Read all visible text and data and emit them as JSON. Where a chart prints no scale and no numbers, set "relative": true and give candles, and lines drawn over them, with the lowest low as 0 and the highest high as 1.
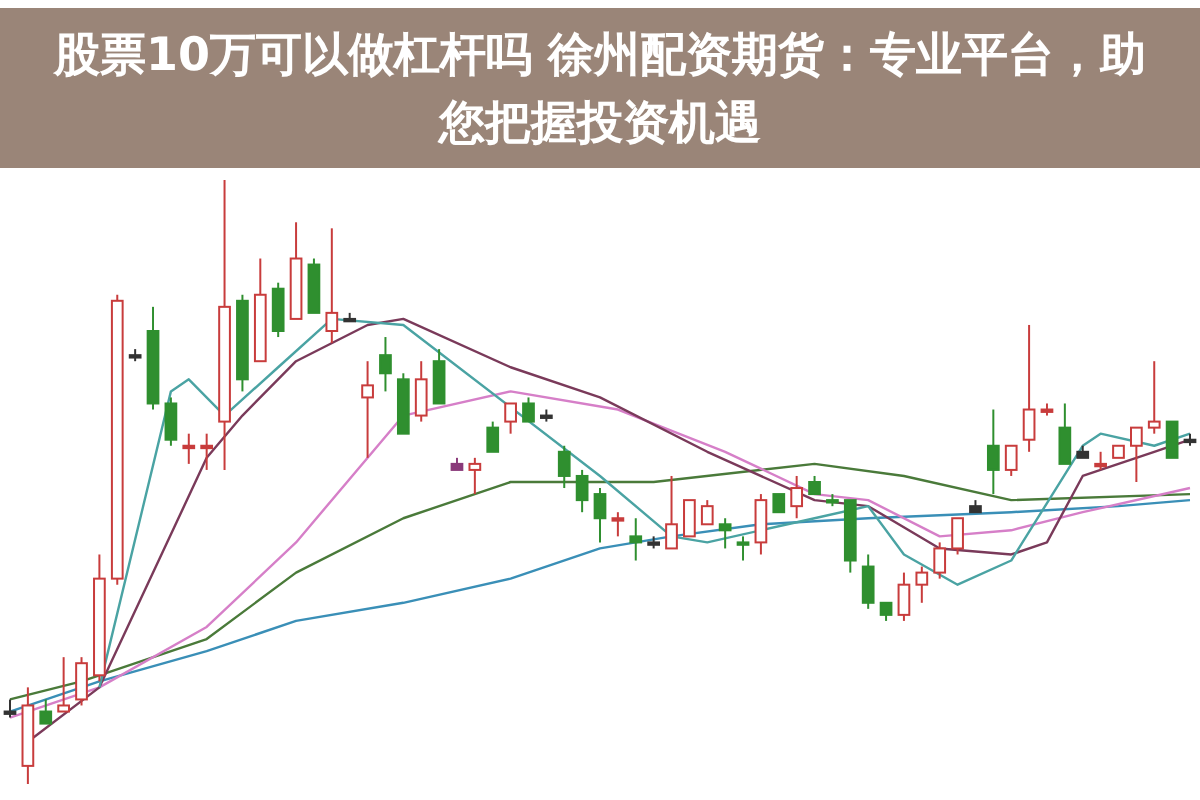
{
  "chart_data": {
    "type": "candlestick",
    "title": "股票10万可以做杠杆吗 徐州配资期货：专业平台，助您把握投资机遇",
    "relative": true,
    "categories": [
      null,
      null,
      null,
      null,
      null,
      null,
      null,
      null,
      null,
      null,
      null,
      null,
      null,
      null,
      null,
      null,
      null,
      null,
      null,
      null,
      null,
      null,
      null,
      null,
      null,
      null,
      null,
      null,
      null,
      null,
      null,
      null,
      null,
      null,
      null,
      null,
      null,
      null,
      null,
      null,
      null,
      null,
      null,
      null,
      null,
      null,
      null,
      null,
      null,
      null,
      null,
      null,
      null,
      null,
      null,
      null,
      null,
      null,
      null,
      null,
      null,
      null,
      null,
      null,
      null,
      null,
      null
    ],
    "ohlc": [
      [
        0.12,
        0.14,
        0.11,
        0.12
      ],
      [
        0.03,
        0.16,
        0,
        0.13
      ],
      [
        0.12,
        0.14,
        0.1,
        0.1
      ],
      [
        0.12,
        0.21,
        0.12,
        0.13
      ],
      [
        0.14,
        0.21,
        0.13,
        0.2
      ],
      [
        0.18,
        0.38,
        0.17,
        0.34
      ],
      [
        0.34,
        0.81,
        0.33,
        0.8
      ],
      [
        0.71,
        0.72,
        0.7,
        0.71
      ],
      [
        0.75,
        0.79,
        0.62,
        0.63
      ],
      [
        0.63,
        0.64,
        0.56,
        0.57
      ],
      [
        0.56,
        0.58,
        0.53,
        0.56
      ],
      [
        0.56,
        0.58,
        0.52,
        0.56
      ],
      [
        0.6,
        1.0,
        0.52,
        0.79
      ],
      [
        0.8,
        0.81,
        0.65,
        0.67
      ],
      [
        0.7,
        0.87,
        0.7,
        0.81
      ],
      [
        0.82,
        0.83,
        0.74,
        0.75
      ],
      [
        0.77,
        0.93,
        0.77,
        0.87
      ],
      [
        0.86,
        0.87,
        0.78,
        0.78
      ],
      [
        0.75,
        0.92,
        0.73,
        0.78
      ],
      [
        0.77,
        0.78,
        0.77,
        0.77
      ],
      [
        0.64,
        0.7,
        0.54,
        0.66
      ],
      [
        0.71,
        0.74,
        0.65,
        0.68
      ],
      [
        0.67,
        0.68,
        0.58,
        0.58
      ],
      [
        0.61,
        0.7,
        0.6,
        0.67
      ],
      [
        0.7,
        0.72,
        0.63,
        0.63
      ],
      [
        0.53,
        0.54,
        0.52,
        0.52
      ],
      [
        0.52,
        0.54,
        0.48,
        0.53
      ],
      [
        0.59,
        0.6,
        0.55,
        0.55
      ],
      [
        0.6,
        0.63,
        0.58,
        0.63
      ],
      [
        0.63,
        0.64,
        0.6,
        0.6
      ],
      [
        0.61,
        0.62,
        0.6,
        0.61
      ],
      [
        0.55,
        0.56,
        0.49,
        0.51
      ],
      [
        0.51,
        0.52,
        0.45,
        0.47
      ],
      [
        0.48,
        0.49,
        0.4,
        0.44
      ],
      [
        0.44,
        0.45,
        0.41,
        0.44
      ],
      [
        0.41,
        0.44,
        0.37,
        0.4
      ],
      [
        0.4,
        0.41,
        0.39,
        0.4
      ],
      [
        0.39,
        0.51,
        0.39,
        0.43
      ],
      [
        0.41,
        0.47,
        0.41,
        0.47
      ],
      [
        0.43,
        0.47,
        0.43,
        0.46
      ],
      [
        0.43,
        0.44,
        0.39,
        0.42
      ],
      [
        0.4,
        0.41,
        0.37,
        0.4
      ],
      [
        0.4,
        0.48,
        0.38,
        0.47
      ],
      [
        0.48,
        0.48,
        0.45,
        0.45
      ],
      [
        0.46,
        0.51,
        0.44,
        0.49
      ],
      [
        0.5,
        0.51,
        0.48,
        0.48
      ],
      [
        0.47,
        0.48,
        0.46,
        0.47
      ],
      [
        0.47,
        0.47,
        0.35,
        0.37
      ],
      [
        0.36,
        0.38,
        0.29,
        0.3
      ],
      [
        0.3,
        0.3,
        0.27,
        0.28
      ],
      [
        0.28,
        0.35,
        0.27,
        0.33
      ],
      [
        0.33,
        0.36,
        0.3,
        0.35
      ],
      [
        0.35,
        0.4,
        0.34,
        0.39
      ],
      [
        0.39,
        0.44,
        0.38,
        0.44
      ],
      [
        0.46,
        0.47,
        0.45,
        0.45
      ],
      [
        0.56,
        0.62,
        0.48,
        0.52
      ],
      [
        0.52,
        0.56,
        0.51,
        0.56
      ],
      [
        0.57,
        0.76,
        0.55,
        0.62
      ],
      [
        0.62,
        0.63,
        0.61,
        0.62
      ],
      [
        0.59,
        0.63,
        0.53,
        0.53
      ],
      [
        0.55,
        0.56,
        0.54,
        0.54
      ],
      [
        0.53,
        0.55,
        0.52,
        0.53
      ],
      [
        0.54,
        0.56,
        0.54,
        0.56
      ],
      [
        0.56,
        0.59,
        0.5,
        0.59
      ],
      [
        0.59,
        0.7,
        0.58,
        0.6
      ],
      [
        0.6,
        0.6,
        0.54,
        0.54
      ],
      [
        0.57,
        0.58,
        0.56,
        0.57
      ]
    ],
    "colors": [
      "#333333",
      "#c83c3c",
      "#2f8f2f",
      "#c83c3c",
      "#c83c3c",
      "#c83c3c",
      "#c83c3c",
      "#333333",
      "#2f8f2f",
      "#2f8f2f",
      "#c83c3c",
      "#c83c3c",
      "#c83c3c",
      "#2f8f2f",
      "#c83c3c",
      "#2f8f2f",
      "#c83c3c",
      "#2f8f2f",
      "#c83c3c",
      "#333333",
      "#c83c3c",
      "#2f8f2f",
      "#2f8f2f",
      "#c83c3c",
      "#2f8f2f",
      "#8a3a7a",
      "#c83c3c",
      "#2f8f2f",
      "#c83c3c",
      "#2f8f2f",
      "#333333",
      "#2f8f2f",
      "#2f8f2f",
      "#2f8f2f",
      "#c83c3c",
      "#2f8f2f",
      "#333333",
      "#c83c3c",
      "#c83c3c",
      "#c83c3c",
      "#2f8f2f",
      "#2f8f2f",
      "#c83c3c",
      "#2f8f2f",
      "#c83c3c",
      "#2f8f2f",
      "#2f8f2f",
      "#2f8f2f",
      "#2f8f2f",
      "#2f8f2f",
      "#c83c3c",
      "#c83c3c",
      "#c83c3c",
      "#c83c3c",
      "#333333",
      "#2f8f2f",
      "#c83c3c",
      "#c83c3c",
      "#c83c3c",
      "#2f8f2f",
      "#333333",
      "#c83c3c",
      "#c83c3c",
      "#c83c3c",
      "#c83c3c",
      "#2f8f2f",
      "#333333"
    ],
    "series": [
      {
        "type": "line",
        "color": "#3a8fb7",
        "values": [
          0.12,
          null,
          null,
          null,
          null,
          0.17,
          null,
          null,
          null,
          null,
          null,
          0.22,
          null,
          null,
          null,
          null,
          0.27,
          null,
          null,
          null,
          null,
          null,
          0.3,
          null,
          null,
          null,
          null,
          null,
          0.34,
          null,
          null,
          null,
          null,
          0.39,
          null,
          null,
          null,
          0.41,
          null,
          null,
          null,
          null,
          0.43,
          null,
          null,
          null,
          null,
          null,
          0.44,
          null,
          null,
          null,
          null,
          null,
          null,
          null,
          0.45,
          null,
          null,
          null,
          null,
          null,
          0.46,
          null,
          null,
          null,
          0.47
        ]
      },
      {
        "type": "line",
        "color": "#4a7a3a",
        "values": [
          0.14,
          null,
          null,
          null,
          0.17,
          null,
          null,
          null,
          null,
          null,
          null,
          0.24,
          null,
          null,
          null,
          null,
          0.35,
          null,
          null,
          null,
          null,
          null,
          0.44,
          null,
          null,
          null,
          null,
          null,
          0.5,
          null,
          null,
          null,
          null,
          null,
          null,
          null,
          0.5,
          null,
          null,
          null,
          null,
          null,
          null,
          null,
          null,
          0.53,
          null,
          null,
          null,
          null,
          0.51,
          null,
          null,
          null,
          null,
          null,
          0.47,
          null,
          null,
          null,
          null,
          null,
          null,
          null,
          null,
          null,
          0.48
        ]
      },
      {
        "type": "line",
        "color": "#d67fc8",
        "values": [
          0.11,
          null,
          null,
          null,
          null,
          0.16,
          null,
          null,
          null,
          null,
          null,
          0.26,
          null,
          null,
          null,
          null,
          0.4,
          null,
          null,
          null,
          null,
          null,
          0.61,
          null,
          null,
          null,
          null,
          null,
          0.65,
          null,
          null,
          null,
          null,
          null,
          0.62,
          null,
          null,
          null,
          null,
          null,
          0.55,
          null,
          null,
          null,
          null,
          0.48,
          null,
          null,
          0.47,
          null,
          null,
          null,
          0.41,
          null,
          null,
          null,
          0.42,
          null,
          null,
          null,
          0.45,
          null,
          null,
          null,
          null,
          null,
          0.49
        ]
      },
      {
        "type": "line",
        "color": "#7a3a5a",
        "values": [
          null,
          0.07,
          null,
          null,
          null,
          0.16,
          null,
          null,
          null,
          null,
          null,
          0.54,
          null,
          0.61,
          null,
          null,
          0.7,
          null,
          null,
          null,
          0.76,
          null,
          0.77,
          null,
          null,
          null,
          null,
          null,
          0.69,
          null,
          null,
          null,
          null,
          0.64,
          null,
          null,
          null,
          null,
          null,
          0.55,
          null,
          null,
          null,
          null,
          null,
          0.47,
          null,
          null,
          0.46,
          null,
          null,
          null,
          0.39,
          null,
          null,
          null,
          0.38,
          null,
          0.4,
          null,
          0.51,
          null,
          null,
          null,
          0.55,
          null,
          0.57
        ]
      },
      {
        "type": "line",
        "color": "#4aa3a3",
        "values": [
          null,
          null,
          null,
          null,
          null,
          0.16,
          null,
          null,
          null,
          0.65,
          0.67,
          null,
          0.61,
          null,
          null,
          0.69,
          null,
          null,
          0.77,
          null,
          null,
          null,
          0.76,
          null,
          null,
          null,
          null,
          null,
          null,
          null,
          null,
          null,
          null,
          0.51,
          null,
          null,
          null,
          0.41,
          null,
          0.4,
          null,
          null,
          null,
          null,
          null,
          0.44,
          null,
          null,
          0.46,
          null,
          0.38,
          null,
          null,
          0.33,
          null,
          null,
          0.37,
          null,
          null,
          null,
          0.56,
          0.58,
          null,
          null,
          0.56,
          null,
          0.58
        ]
      }
    ]
  }
}
